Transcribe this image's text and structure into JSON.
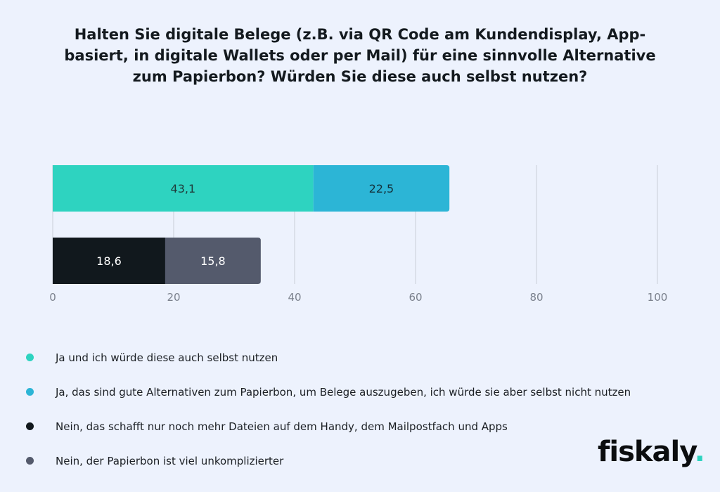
{
  "chart_data": {
    "type": "bar",
    "orientation": "horizontal",
    "stacked": true,
    "title": "Halten Sie digitale Belege (z.B. via QR Code am Kundendisplay, App-basiert, in digitale Wallets oder per Mail) für eine sinnvolle Alternative zum Papierbon? Würden Sie diese auch selbst nutzen?",
    "xlim": [
      0,
      100
    ],
    "xticks": [
      "0",
      "20",
      "40",
      "60",
      "80",
      "100"
    ],
    "grid": true,
    "legend_position": "bottom-left",
    "rows": [
      {
        "segments": [
          {
            "series": 0,
            "value": 43.1,
            "label": "43,1"
          },
          {
            "series": 1,
            "value": 22.5,
            "label": "22,5"
          }
        ]
      },
      {
        "segments": [
          {
            "series": 2,
            "value": 18.6,
            "label": "18,6"
          },
          {
            "series": 3,
            "value": 15.8,
            "label": "15,8"
          }
        ]
      }
    ],
    "series": [
      {
        "name": "Ja und ich würde diese auch selbst nutzen",
        "color": "#2ed3c0",
        "label_color": "#1f3b3a"
      },
      {
        "name": "Ja, das sind gute Alternativen zum Papierbon, um Belege auszugeben, ich würde sie aber selbst nicht nutzen",
        "color": "#2cb5d6",
        "label_color": "#13303a"
      },
      {
        "name": "Nein, das schafft nur noch mehr Dateien auf dem Handy, dem Mailpostfach und Apps",
        "color": "#11181d",
        "label_color": "#ffffff"
      },
      {
        "name": "Nein, der Papierbon ist viel unkomplizierter",
        "color": "#545a6c",
        "label_color": "#ffffff"
      }
    ]
  },
  "logo": {
    "text": "fiskaly",
    "period": "."
  }
}
